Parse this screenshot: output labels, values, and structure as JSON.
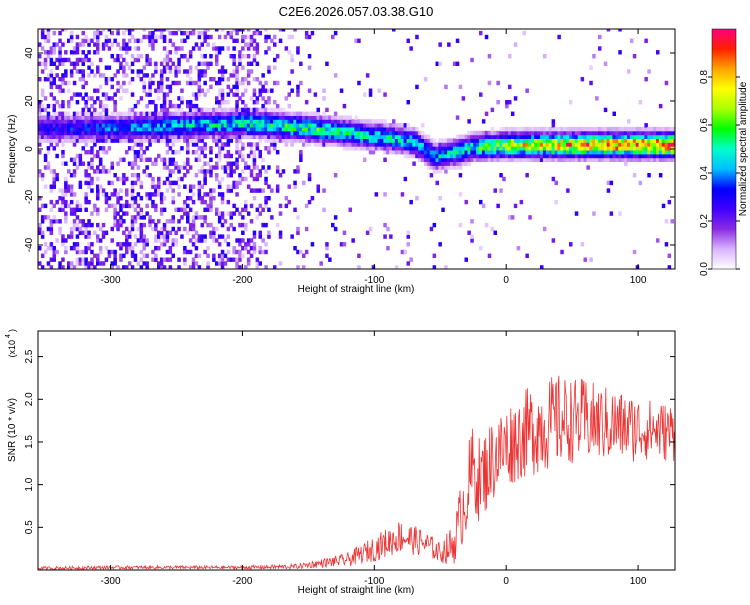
{
  "page": {
    "title": "C2E6.2026.057.03.38.G10"
  },
  "chart_data": [
    {
      "type": "heatmap",
      "xlabel": "Height of straight line (km)",
      "ylabel": "Frequency (Hz)",
      "xlim": [
        -355,
        128
      ],
      "ylim": [
        -50,
        50
      ],
      "x_ticks": [
        -300,
        -200,
        -100,
        0,
        100
      ],
      "y_ticks": [
        -40,
        -20,
        0,
        20,
        40
      ],
      "colorbar": {
        "label": "Normalized spectral amplitude",
        "range": [
          0,
          1
        ],
        "ticks": [
          "0.0",
          "0.2",
          "0.4",
          "0.6",
          "0.8"
        ],
        "tick_values": [
          0.0,
          0.2,
          0.4,
          0.6,
          0.8
        ],
        "colormap": [
          "#ffffff",
          "#d9b3ff",
          "#8a2be2",
          "#3f00ff",
          "#0000ff",
          "#00bfff",
          "#00ffcc",
          "#00ff00",
          "#aaff00",
          "#ffff00",
          "#ffa500",
          "#ff2000",
          "#ff0080"
        ]
      },
      "ridge": {
        "points": [
          [
            -350,
            8
          ],
          [
            -300,
            8
          ],
          [
            -250,
            9
          ],
          [
            -200,
            10
          ],
          [
            -150,
            8
          ],
          [
            -120,
            6
          ],
          [
            -90,
            4
          ],
          [
            -70,
            2
          ],
          [
            -55,
            -4
          ],
          [
            -40,
            -2
          ],
          [
            -25,
            0
          ],
          [
            0,
            1
          ],
          [
            50,
            1
          ],
          [
            100,
            1
          ],
          [
            125,
            1
          ]
        ],
        "amplitude": [
          [
            -350,
            0.3
          ],
          [
            -250,
            0.45
          ],
          [
            -200,
            0.5
          ],
          [
            -150,
            0.55
          ],
          [
            -100,
            0.5
          ],
          [
            -60,
            0.45
          ],
          [
            -30,
            0.5
          ],
          [
            0,
            0.7
          ],
          [
            50,
            0.85
          ],
          [
            100,
            0.9
          ],
          [
            125,
            0.95
          ]
        ]
      }
    },
    {
      "type": "line",
      "xlabel": "Height of straight line (km)",
      "ylabel": "SNR (10 * v/v)",
      "y_multiplier": "(x10",
      "y_multiplier_exp": "4",
      "y_multiplier_close": ")",
      "xlim": [
        -355,
        128
      ],
      "ylim": [
        0,
        2.8
      ],
      "x_ticks": [
        -300,
        -200,
        -100,
        0,
        100
      ],
      "y_ticks": [
        "0.5",
        "1.0",
        "1.5",
        "2.0",
        "2.5"
      ],
      "y_tick_values": [
        0.5,
        1.0,
        1.5,
        2.0,
        2.5
      ],
      "color": "#ee3333",
      "series": [
        {
          "x": [
            -355,
            -300,
            -250,
            -200,
            -160,
            -140,
            -120,
            -100,
            -80,
            -60,
            -50,
            -40,
            -30,
            -25,
            -20,
            -10,
            0,
            10,
            20,
            30,
            40,
            50,
            60,
            70,
            80,
            90,
            100,
            110,
            120,
            128
          ],
          "y": [
            0.02,
            0.03,
            0.03,
            0.03,
            0.04,
            0.08,
            0.12,
            0.25,
            0.4,
            0.3,
            0.2,
            0.3,
            0.9,
            1.2,
            1.05,
            1.3,
            1.45,
            1.55,
            1.65,
            1.7,
            1.75,
            1.75,
            1.75,
            1.72,
            1.7,
            1.68,
            1.65,
            1.65,
            1.62,
            1.62
          ],
          "spread": [
            0.02,
            0.02,
            0.02,
            0.02,
            0.03,
            0.05,
            0.08,
            0.15,
            0.2,
            0.15,
            0.12,
            0.25,
            0.5,
            0.55,
            0.5,
            0.5,
            0.5,
            0.5,
            0.55,
            0.55,
            0.55,
            0.5,
            0.5,
            0.45,
            0.45,
            0.4,
            0.4,
            0.35,
            0.35,
            0.35
          ]
        }
      ]
    }
  ]
}
